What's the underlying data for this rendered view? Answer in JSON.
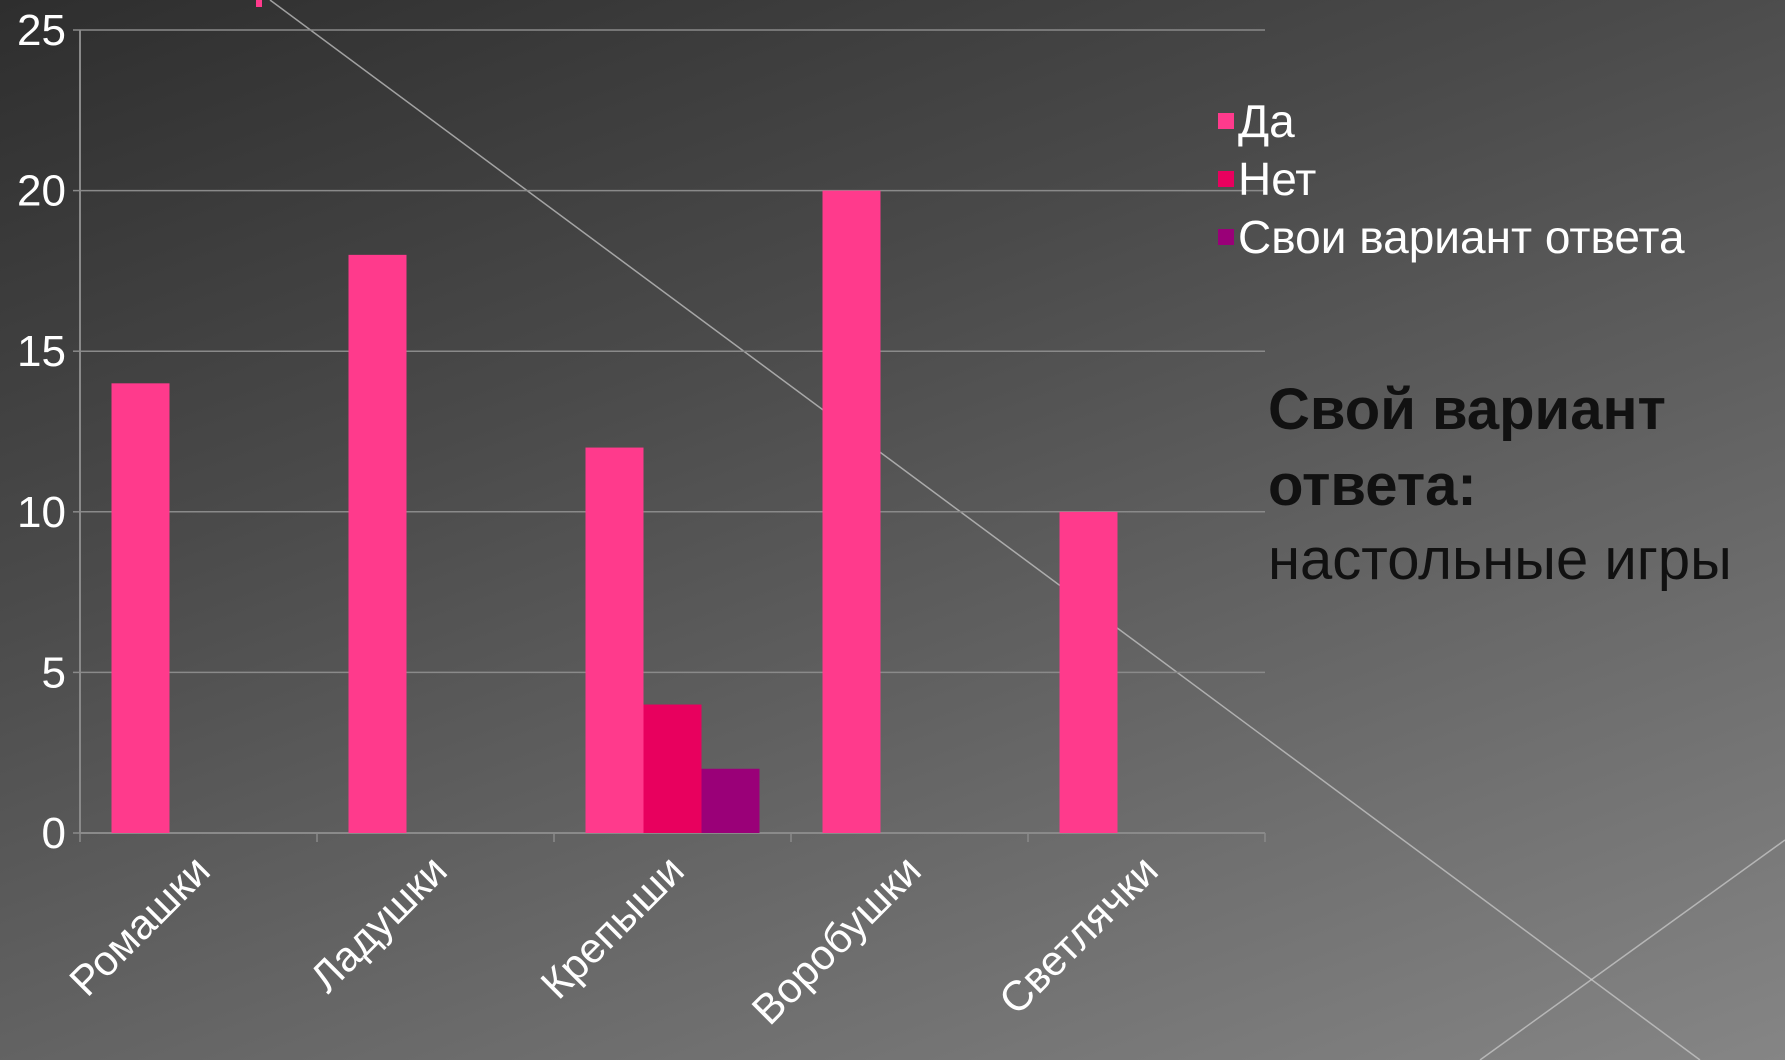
{
  "chart_data": {
    "type": "bar",
    "categories": [
      "Ромашки",
      "Ладушки",
      "Крепыши",
      "Воробушки",
      "Светлячки"
    ],
    "series": [
      {
        "name": "Да",
        "values": [
          14,
          18,
          12,
          20,
          10
        ],
        "color": "#ff3a8c"
      },
      {
        "name": "Нет",
        "values": [
          0,
          0,
          4,
          0,
          0
        ],
        "color": "#e8005e"
      },
      {
        "name": "Свои вариант ответа",
        "values": [
          0,
          0,
          2,
          0,
          0
        ],
        "color": "#9a0078"
      }
    ],
    "yticks": [
      0,
      5,
      10,
      15,
      20,
      25
    ],
    "ylim": [
      0,
      25
    ],
    "grid": true,
    "legend_position": "right"
  },
  "note": {
    "title": "Свой вариант ответа:",
    "text": "настольные игры"
  }
}
